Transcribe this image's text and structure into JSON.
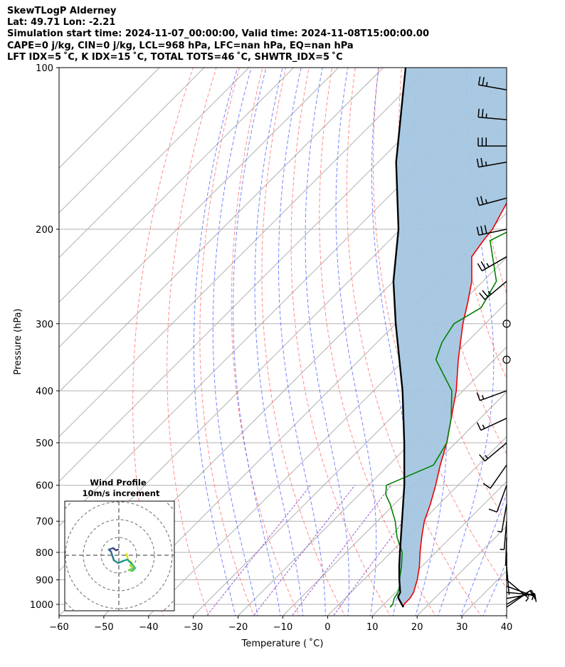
{
  "title_lines": [
    "SkewTLogP Alderney",
    "Lat: 49.71   Lon: -2.21",
    "Simulation start time: 2024-11-07_00:00:00, Valid time: 2024-11-08T15:00:00.00",
    "CAPE=0 j/kg, CIN=0 j/kg, LCL=968 hPa, LFC=nan hPa, EQ=nan hPa",
    "LFT IDX=5 ˚C, K IDX=15 ˚C, TOTAL TOTS=46 ˚C, SHWTR_IDX=5 ˚C"
  ],
  "colors": {
    "temperature": "#ee0000",
    "dewpoint": "#008000",
    "parcel": "#000000",
    "cape_fill": "#a4c6e0",
    "dry_adiabat": "#ff6666",
    "moist_adiabat": "#5566ff",
    "isotherm": "#b0b0b0",
    "mixing_ratio": "#9955cc"
  },
  "chart_data": {
    "type": "line",
    "subtype": "skew-t log-p diagram",
    "xlabel": "Temperature ( ˚C)",
    "ylabel": "Pressure (hPa)",
    "xlim": [
      -60,
      40
    ],
    "ylim": [
      1050,
      100
    ],
    "y_scale": "log",
    "x_ticks": [
      -60,
      -50,
      -40,
      -30,
      -20,
      -10,
      0,
      10,
      20,
      30,
      40
    ],
    "x_tick_labels": [
      "−60",
      "−50",
      "−40",
      "−30",
      "−20",
      "−10",
      "0",
      "10",
      "20",
      "30",
      "40"
    ],
    "y_ticks": [
      1000,
      900,
      800,
      700,
      600,
      500,
      400,
      300,
      200,
      100
    ],
    "y_tick_labels": [
      "1000",
      "900",
      "800",
      "700",
      "600",
      "500",
      "400",
      "300",
      "200",
      "100"
    ],
    "grid": true,
    "series": [
      {
        "role": "temperature",
        "points": [
          [
            1012,
            15.0
          ],
          [
            1000,
            14.5
          ],
          [
            975,
            14.5
          ],
          [
            950,
            14.0
          ],
          [
            925,
            13.0
          ],
          [
            900,
            12.0
          ],
          [
            850,
            9.5
          ],
          [
            800,
            6.5
          ],
          [
            750,
            3.5
          ],
          [
            700,
            0.5
          ],
          [
            650,
            -2.0
          ],
          [
            600,
            -5.0
          ],
          [
            550,
            -8.5
          ],
          [
            500,
            -12.0
          ],
          [
            450,
            -16.5
          ],
          [
            400,
            -21.5
          ],
          [
            350,
            -28.0
          ],
          [
            300,
            -35.0
          ],
          [
            275,
            -38.5
          ],
          [
            250,
            -42.5
          ],
          [
            225,
            -48.0
          ],
          [
            210,
            -49.0
          ],
          [
            200,
            -49.5
          ],
          [
            180,
            -52.0
          ],
          [
            160,
            -54.0
          ],
          [
            150,
            -55.0
          ],
          [
            140,
            -56.0
          ],
          [
            125,
            -58.0
          ],
          [
            110,
            -59.0
          ],
          [
            100,
            -60.0
          ]
        ]
      },
      {
        "role": "dewpoint",
        "points": [
          [
            1012,
            12.0
          ],
          [
            1000,
            12.0
          ],
          [
            975,
            11.0
          ],
          [
            950,
            10.5
          ],
          [
            925,
            9.5
          ],
          [
            900,
            8.0
          ],
          [
            850,
            5.5
          ],
          [
            800,
            2.5
          ],
          [
            750,
            -2.0
          ],
          [
            700,
            -6.0
          ],
          [
            650,
            -11.0
          ],
          [
            625,
            -14.0
          ],
          [
            600,
            -16.0
          ],
          [
            550,
            -10.0
          ],
          [
            500,
            -12.0
          ],
          [
            450,
            -16.5
          ],
          [
            400,
            -22.5
          ],
          [
            350,
            -33.0
          ],
          [
            325,
            -35.5
          ],
          [
            300,
            -37.0
          ],
          [
            280,
            -34.5
          ],
          [
            250,
            -37.0
          ],
          [
            210,
            -47.5
          ],
          [
            200,
            -45.0
          ],
          [
            180,
            -47.0
          ],
          [
            160,
            -48.0
          ],
          [
            140,
            -51.0
          ],
          [
            125,
            -54.0
          ],
          [
            115,
            -51.0
          ],
          [
            100,
            -50.0
          ]
        ]
      },
      {
        "role": "parcel",
        "points": [
          [
            1012,
            15.0
          ],
          [
            975,
            12.0
          ],
          [
            968,
            11.5
          ],
          [
            950,
            11.0
          ],
          [
            900,
            8.0
          ],
          [
            850,
            5.0
          ],
          [
            800,
            2.0
          ],
          [
            700,
            -4.5
          ],
          [
            600,
            -12.0
          ],
          [
            500,
            -21.5
          ],
          [
            400,
            -33.5
          ],
          [
            300,
            -50.0
          ],
          [
            250,
            -60.0
          ],
          [
            200,
            -70.5
          ],
          [
            150,
            -86.0
          ],
          [
            100,
            -105.0
          ]
        ]
      }
    ],
    "wind_barbs_hpa": [
      1012,
      1000,
      975,
      950,
      925,
      900,
      850,
      800,
      750,
      700,
      650,
      600,
      550,
      500,
      450,
      400,
      350,
      300,
      250,
      225,
      200,
      175,
      150,
      140,
      125,
      110
    ],
    "wind_profile_inset": {
      "title": "Wind Profile",
      "subtitle": "10m/s increment",
      "ring_step_ms": 10
    }
  }
}
